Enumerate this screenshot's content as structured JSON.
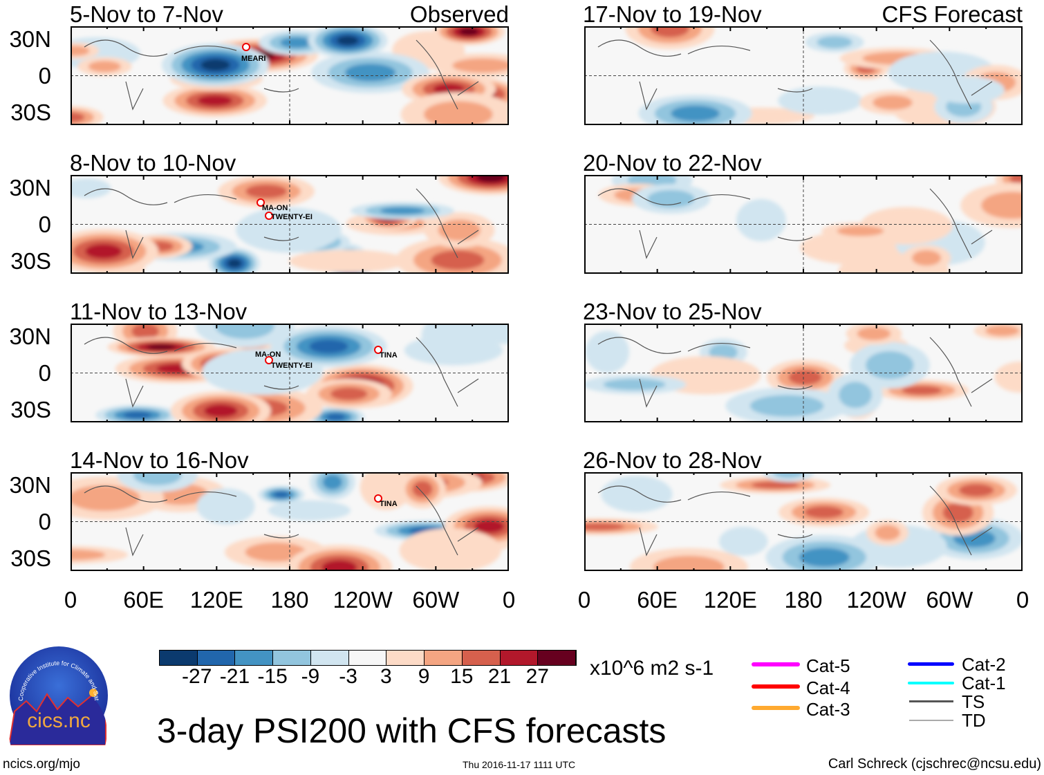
{
  "left_header_right": "Observed",
  "right_header_right": "CFS Forecast",
  "left_panels": [
    "5-Nov to 7-Nov",
    "8-Nov to 10-Nov",
    "11-Nov to 13-Nov",
    "14-Nov to 16-Nov"
  ],
  "right_panels": [
    "17-Nov to 19-Nov",
    "20-Nov to 22-Nov",
    "23-Nov to 25-Nov",
    "26-Nov to 28-Nov"
  ],
  "y_ticks": [
    "30N",
    "0",
    "30S"
  ],
  "x_ticks": [
    "0",
    "60E",
    "120E",
    "180",
    "120W",
    "60W",
    "0"
  ],
  "storms": {
    "p0": [
      "MEARI"
    ],
    "p1": [
      "MA-ON",
      "TWENTY-EI"
    ],
    "p2": [
      "MA-ON",
      "TWENTY-EI",
      "TINA"
    ],
    "p3": [
      "TINA"
    ]
  },
  "colorbar": {
    "colors": [
      "#0b3a6e",
      "#2166ac",
      "#4393c3",
      "#92c5de",
      "#d1e5f0",
      "#f7f7f7",
      "#fddbc7",
      "#f4a582",
      "#d6604d",
      "#b2182b",
      "#67001f"
    ],
    "labels": [
      "-27",
      "-21",
      "-15",
      "-9",
      "-3",
      "3",
      "9",
      "15",
      "21",
      "27"
    ],
    "units": "x10^6 m2 s-1"
  },
  "legend": [
    {
      "label": "Cat-5",
      "color": "#ff00ff"
    },
    {
      "label": "Cat-4",
      "color": "#ff0000"
    },
    {
      "label": "Cat-3",
      "color": "#ffa a30"
    },
    {
      "label": "Cat-2",
      "color": "#0000ff"
    },
    {
      "label": "Cat-1",
      "color": "#00ffff"
    },
    {
      "label": "TS",
      "color": "#555555"
    },
    {
      "label": "TD",
      "color": "#aaaaaa"
    }
  ],
  "title": "3-day PSI200 with CFS forecasts",
  "logo_text": "cics.nc",
  "logo_ring_text": "Cooperative Institute for Climate and Satellites",
  "footer_left": "ncics.org/mjo",
  "footer_center": "Thu 2016-11-17 1111 UTC",
  "footer_right": "Carl Schreck (cjschrec@ncsu.edu)"
}
